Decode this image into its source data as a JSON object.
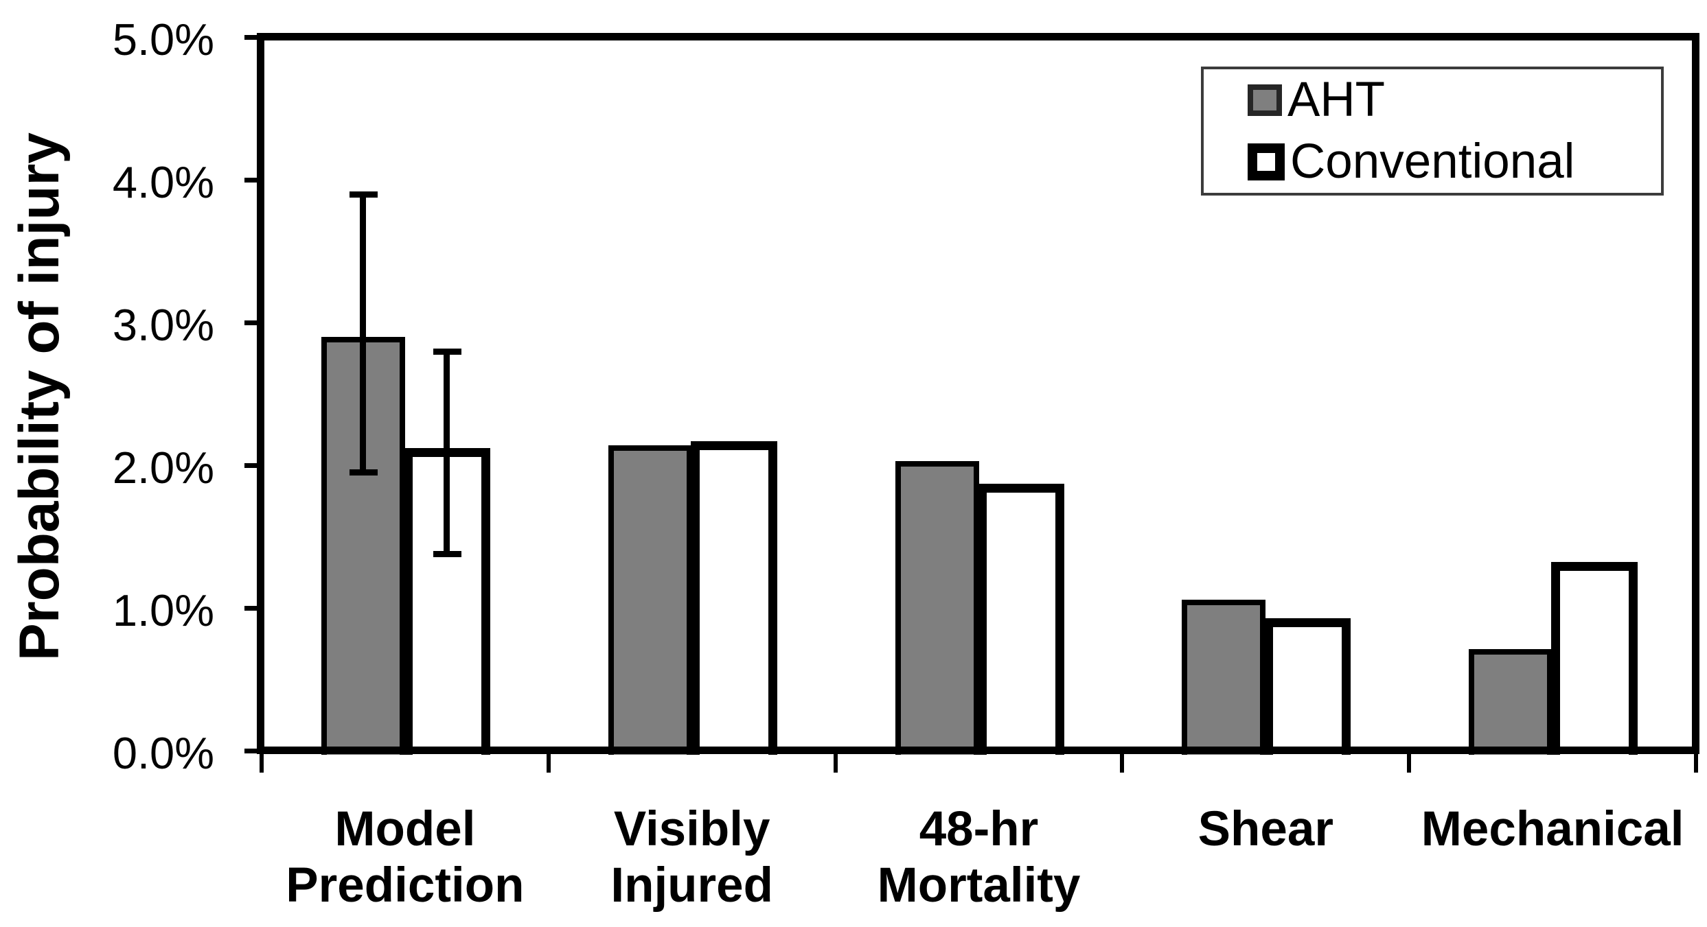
{
  "chart_data": {
    "type": "bar",
    "title": "",
    "ylabel": "Probability of injury",
    "xlabel": "",
    "categories": [
      "Model Prediction",
      "Visibly Injured",
      "48-hr Mortality",
      "Shear",
      "Mechanical"
    ],
    "category_lines": [
      [
        "Model",
        "Prediction"
      ],
      [
        "Visibly",
        "Injured"
      ],
      [
        "48-hr",
        "Mortality"
      ],
      [
        "Shear"
      ],
      [
        "Mechanical"
      ]
    ],
    "series": [
      {
        "name": "AHT",
        "fill": "#7f7f7f",
        "border": "#000000",
        "values": [
          2.9,
          2.14,
          2.03,
          1.06,
          0.71
        ],
        "error_bars": [
          {
            "low": 1.95,
            "high": 3.9
          },
          null,
          null,
          null,
          null
        ]
      },
      {
        "name": "Conventional",
        "fill": "#ffffff",
        "border": "#000000",
        "values": [
          2.12,
          2.17,
          1.87,
          0.93,
          1.32
        ],
        "error_bars": [
          {
            "low": 1.38,
            "high": 2.8
          },
          null,
          null,
          null,
          null
        ]
      }
    ],
    "ylim": [
      0,
      5
    ],
    "y_tick_interval": 1.0,
    "y_tick_labels": [
      "5.0%",
      "4.0%",
      "3.0%",
      "2.0%",
      "1.0%",
      "0.0%"
    ],
    "legend_position": "top-right-inside",
    "grid": false,
    "colors": {
      "axis": "#000000",
      "background": "#ffffff"
    }
  }
}
